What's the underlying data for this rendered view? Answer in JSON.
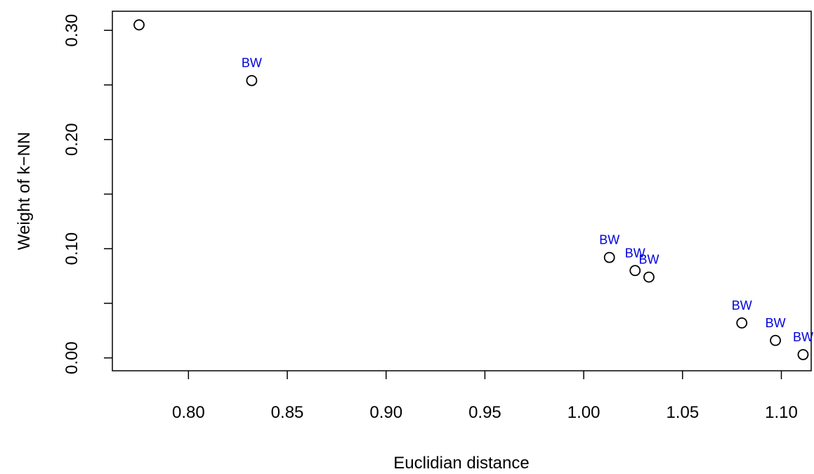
{
  "chart_data": {
    "type": "scatter",
    "title": "",
    "xlabel": "Euclidian distance",
    "ylabel": "Weight of k−NN",
    "xlim": [
      0.7615,
      1.1151
    ],
    "ylim": [
      -0.0118,
      0.3175
    ],
    "x_ticks": [
      0.8,
      0.85,
      0.9,
      0.95,
      1.0,
      1.05,
      1.1
    ],
    "x_tick_labels": [
      "0.80",
      "0.85",
      "0.90",
      "0.95",
      "1.00",
      "1.05",
      "1.10"
    ],
    "y_ticks": [
      0.0,
      0.05,
      0.1,
      0.15,
      0.2,
      0.25,
      0.3
    ],
    "y_tick_labels": [
      "0.00",
      "",
      "0.10",
      "",
      "0.20",
      "",
      "0.30"
    ],
    "grid": false,
    "point_label_color": "#0000dd",
    "points": [
      {
        "x": 0.775,
        "y": 0.305,
        "label": ""
      },
      {
        "x": 0.832,
        "y": 0.254,
        "label": "BW"
      },
      {
        "x": 1.013,
        "y": 0.092,
        "label": "BW"
      },
      {
        "x": 1.026,
        "y": 0.08,
        "label": "BW"
      },
      {
        "x": 1.033,
        "y": 0.074,
        "label": "BW"
      },
      {
        "x": 1.08,
        "y": 0.032,
        "label": "BW"
      },
      {
        "x": 1.097,
        "y": 0.016,
        "label": "BW"
      },
      {
        "x": 1.111,
        "y": 0.003,
        "label": "BW"
      }
    ]
  }
}
